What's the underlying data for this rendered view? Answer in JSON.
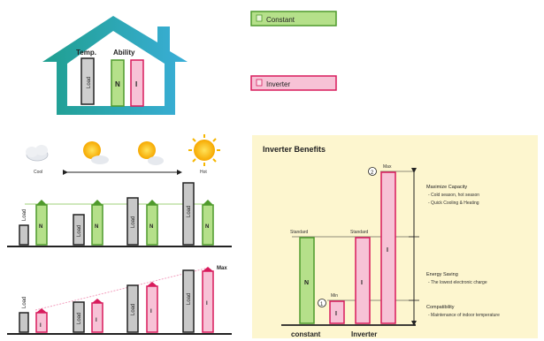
{
  "house": {
    "temp_label": "Temp.",
    "ability_label": "Ability",
    "load_label": "Load",
    "n_label": "N",
    "i_label": "I"
  },
  "legend": {
    "constant_label": "Constant",
    "inverter_label": "Inverter"
  },
  "weather": {
    "cool_label": "Cool",
    "hot_label": "Hot"
  },
  "constant_panel": {
    "load_label": "Load",
    "n_label": "N"
  },
  "inverter_panel": {
    "load_label": "Load",
    "i_label": "I",
    "max_label": "Max"
  },
  "benefits": {
    "title": "Inverter Benefits",
    "standard_left": "Standard",
    "standard_right": "Standard",
    "min_label": "Min",
    "max_label": "Max",
    "n_label": "N",
    "i_label": "I",
    "marker_1": "1",
    "marker_2": "2",
    "constant_label": "constant",
    "inverter_label": "Inverter",
    "capacity_title": "Maximize Capacity",
    "capacity_line1": "- Cold season, hot season",
    "capacity_line2": "- Quick Cooling & Heating",
    "energy_title": "Energy Saving",
    "energy_line1": "- The lowest electronic charge",
    "compat_title": "Compatibility",
    "compat_line1": "- Maintenance of indoor temperature"
  },
  "colors": {
    "green": "#b5e08a",
    "green_border": "#4f9a2c",
    "pink": "#f7c2d6",
    "pink_border": "#d81b5c",
    "load": "#c8c8c8",
    "house": "#24a8a8",
    "panel_bg": "#fdf6cf"
  }
}
